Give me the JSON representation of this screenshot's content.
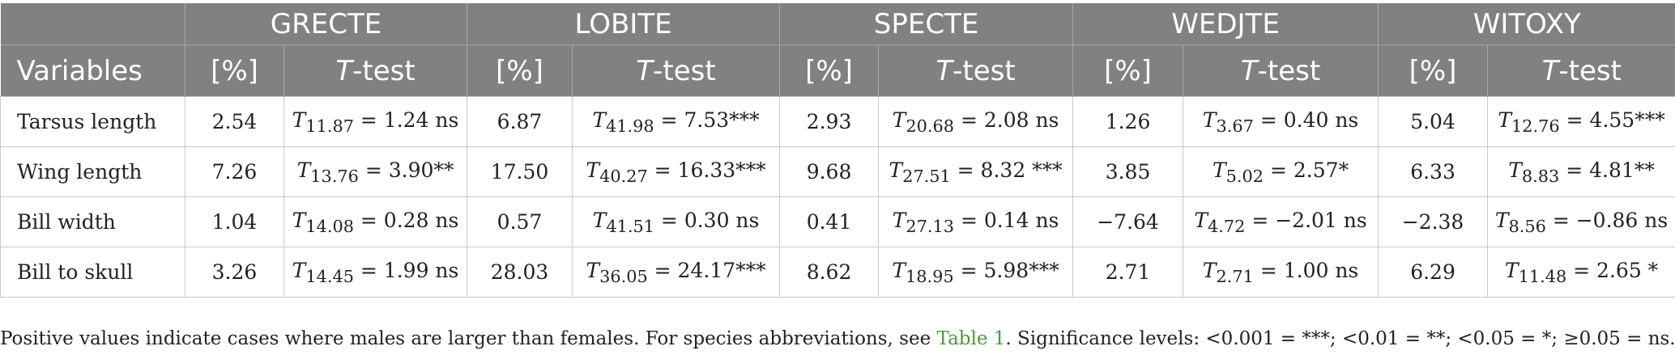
{
  "header": {
    "species": [
      "GRECTE",
      "LOBITE",
      "SPECTE",
      "WEDJTE",
      "WITOXY"
    ],
    "variables_label": "Variables",
    "pct_label": "[%]",
    "ttest_italic": "T",
    "ttest_rest": "-test"
  },
  "rows": [
    {
      "label": "Tarsus length",
      "cells": [
        {
          "pct": "2.54",
          "df": "11.87",
          "rest": " = 1.24 ns"
        },
        {
          "pct": "6.87",
          "df": "41.98",
          "rest": " = 7.53***"
        },
        {
          "pct": "2.93",
          "df": "20.68",
          "rest": " = 2.08 ns"
        },
        {
          "pct": "1.26",
          "df": "3.67",
          "rest": " = 0.40 ns"
        },
        {
          "pct": "5.04",
          "df": "12.76",
          "rest": " = 4.55***"
        }
      ]
    },
    {
      "label": "Wing length",
      "cells": [
        {
          "pct": "7.26",
          "df": "13.76",
          "rest": " = 3.90**"
        },
        {
          "pct": "17.50",
          "df": "40.27",
          "rest": " = 16.33***"
        },
        {
          "pct": "9.68",
          "df": "27.51",
          "rest": " = 8.32 ***"
        },
        {
          "pct": "3.85",
          "df": "5.02",
          "rest": " = 2.57*"
        },
        {
          "pct": "6.33",
          "df": "8.83",
          "rest": " = 4.81**"
        }
      ]
    },
    {
      "label": "Bill width",
      "cells": [
        {
          "pct": "1.04",
          "df": "14.08",
          "rest": " = 0.28 ns"
        },
        {
          "pct": "0.57",
          "df": "41.51",
          "rest": " = 0.30 ns"
        },
        {
          "pct": "0.41",
          "df": "27.13",
          "rest": " = 0.14 ns"
        },
        {
          "pct": "−7.64",
          "df": "4.72",
          "rest": " = −2.01 ns"
        },
        {
          "pct": "−2.38",
          "df": "8.56",
          "rest": " = −0.86 ns"
        }
      ]
    },
    {
      "label": "Bill to skull",
      "cells": [
        {
          "pct": "3.26",
          "df": "14.45",
          "rest": " = 1.99 ns"
        },
        {
          "pct": "28.03",
          "df": "36.05",
          "rest": " = 24.17***"
        },
        {
          "pct": "8.62",
          "df": "18.95",
          "rest": " = 5.98***"
        },
        {
          "pct": "2.71",
          "df": "2.71",
          "rest": " = 1.00 ns"
        },
        {
          "pct": "6.29",
          "df": "11.48",
          "rest": " = 2.65 *"
        }
      ]
    }
  ],
  "footnote": {
    "before_link": "Positive values indicate cases where males are larger than females. For species abbreviations, see ",
    "link": "Table 1",
    "after_link": ". Significance levels: <0.001 = ***; <0.01 = **; <0.05 = *; ≥0.05 = ns."
  },
  "colors": {
    "header_bg": "#818180",
    "link": "#4a9c3c"
  }
}
